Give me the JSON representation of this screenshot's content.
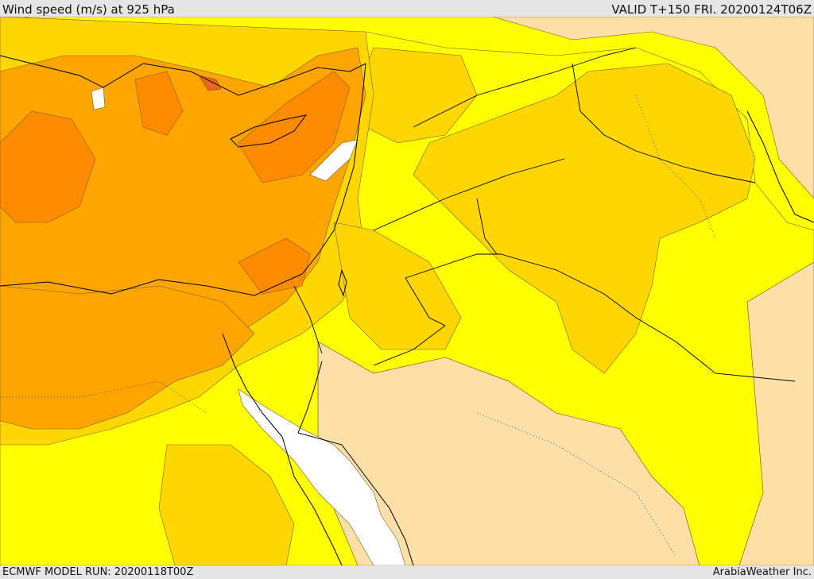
{
  "header": {
    "title": "Wind speed (m/s) at 925 hPa",
    "valid": "VALID T+150 FRI. 20200124T06Z"
  },
  "footer": {
    "model_run": "ECMWF MODEL RUN: 20200118T00Z",
    "credit": "ArabiaWeather Inc."
  },
  "map": {
    "field": "wind speed 925 hPa",
    "colors": {
      "lowest": "#ffffff",
      "low": "#fde0a8",
      "light": "#ffff00",
      "mid": "#ffd700",
      "high": "#ffa500",
      "higher": "#ff8c00",
      "highest": "#e86820",
      "coast": "#000000",
      "contour": "#7a5a20"
    },
    "icons": [
      "coastline-lines",
      "border-lines",
      "wind-shading"
    ]
  }
}
